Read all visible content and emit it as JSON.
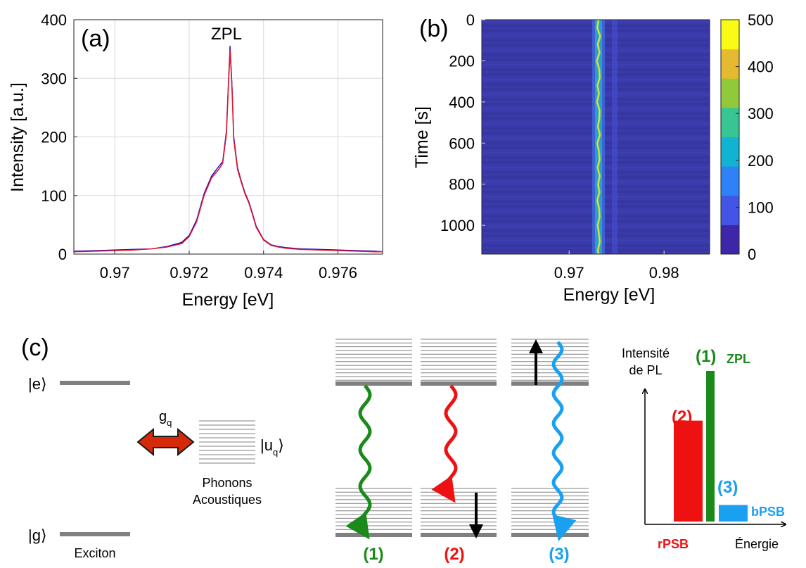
{
  "chart_data": [
    {
      "panel": "(a)",
      "type": "line",
      "annotation": "ZPL",
      "xlabel": "Energy [eV]",
      "ylabel": "Intensity [a.u.]",
      "xlim": [
        0.9689,
        0.9772
      ],
      "ylim": [
        0,
        400
      ],
      "grid": true,
      "x_ticks": [
        0.97,
        0.972,
        0.974,
        0.976
      ],
      "x_tick_labels": [
        "0.97",
        "0.972",
        "0.974",
        "0.976"
      ],
      "y_ticks": [
        0,
        100,
        200,
        300,
        400
      ],
      "y_tick_labels": [
        "0",
        "100",
        "200",
        "300",
        "400"
      ],
      "colors": {
        "measured": "#0000cc",
        "fit": "#e0142c"
      },
      "series": [
        {
          "values_x": [
            0.9689,
            0.9695,
            0.97,
            0.9705,
            0.971,
            0.9714,
            0.9718,
            0.972,
            0.9722,
            0.9724,
            0.9726,
            0.9728,
            0.9729,
            0.973,
            0.97305,
            0.9731,
            0.97315,
            0.9732,
            0.9733,
            0.9734,
            0.9735,
            0.9736,
            0.9737,
            0.9738,
            0.974,
            0.9742,
            0.9744,
            0.9746,
            0.975,
            0.9755,
            0.976,
            0.9765,
            0.977,
            0.9772
          ],
          "values_y": [
            5,
            6,
            7,
            8,
            9,
            13,
            20,
            32,
            58,
            103,
            133,
            150,
            158,
            210,
            285,
            355,
            290,
            200,
            148,
            125,
            105,
            90,
            70,
            48,
            25,
            16,
            13,
            11,
            9,
            8,
            7,
            6,
            5,
            4
          ]
        },
        {
          "values_x": [
            0.9689,
            0.9695,
            0.97,
            0.9705,
            0.971,
            0.9714,
            0.9718,
            0.972,
            0.9722,
            0.9724,
            0.9726,
            0.9728,
            0.9729,
            0.973,
            0.97305,
            0.9731,
            0.97315,
            0.9732,
            0.9733,
            0.9734,
            0.9735,
            0.9736,
            0.9737,
            0.9738,
            0.974,
            0.9742,
            0.9744,
            0.9746,
            0.975,
            0.9755,
            0.976,
            0.9765,
            0.977,
            0.9772
          ],
          "values_y": [
            4,
            5,
            6,
            7,
            9,
            12,
            18,
            30,
            55,
            100,
            130,
            145,
            155,
            205,
            280,
            348,
            285,
            195,
            145,
            123,
            103,
            88,
            68,
            46,
            24,
            15,
            12,
            10,
            8,
            7,
            6,
            5,
            4,
            4
          ]
        }
      ]
    },
    {
      "panel": "(b)",
      "type": "heatmap",
      "xlabel": "Energy [eV]",
      "ylabel": "Time [s]",
      "xlim": [
        0.9608,
        0.9848
      ],
      "ylim": [
        0,
        1140
      ],
      "y_reversed": true,
      "x_ticks": [
        0.97,
        0.98
      ],
      "x_tick_labels": [
        "0.97",
        "0.98"
      ],
      "y_ticks": [
        0,
        200,
        400,
        600,
        800,
        1000
      ],
      "y_tick_labels": [
        "0",
        "200",
        "400",
        "600",
        "800",
        "1000"
      ],
      "colorbar": {
        "min": 0,
        "max": 500,
        "ticks": [
          0,
          100,
          200,
          300,
          400,
          500
        ],
        "tick_labels": [
          "0",
          "100",
          "200",
          "300",
          "400",
          "500"
        ],
        "colors": [
          "#3e26a8",
          "#4355e6",
          "#2d82f7",
          "#12b2d3",
          "#36c593",
          "#90ca3a",
          "#e6ba30",
          "#f9fb15"
        ]
      },
      "peak_line": {
        "energy": 0.9731,
        "peak_intensity": 420,
        "time_points": [
          0,
          40,
          80,
          120,
          160,
          200,
          240,
          280,
          320,
          360,
          400,
          440,
          480,
          520,
          560,
          600,
          640,
          680,
          720,
          760,
          800,
          840,
          880,
          920,
          960,
          1000,
          1040,
          1080,
          1120,
          1140
        ]
      },
      "faint_line_energy": 0.9748
    }
  ],
  "panel_c": {
    "label": "(c)",
    "level_e": "|e⟩",
    "level_g": "|g⟩",
    "coupling": "g",
    "coupling_sub": "q",
    "phonon_state": "|u",
    "phonon_state_sub": "q",
    "phonon_state_close": "⟩",
    "phonons_line1": "Phonons",
    "phonons_line2": "Acoustiques",
    "exciton": "Exciton",
    "process_labels": [
      "(1)",
      "(2)",
      "(3)"
    ],
    "colors": {
      "zpl": "#1a8a1a",
      "rpsb": "#ee1111",
      "bpsb": "#1aa0f0",
      "arrow_double": "#d42a0a",
      "level": "#808080"
    },
    "spectrum": {
      "ylabel_line1": "Intensité",
      "ylabel_line2": "de PL",
      "xlabel": "Énergie",
      "bar_zpl_label": "(1)",
      "bar_zpl_name": "ZPL",
      "bar_rpsb_label": "(2)",
      "bar_rpsb_name": "rPSB",
      "bar_bpsb_label": "(3)",
      "bar_bpsb_name": "bPSB",
      "bar_heights": {
        "rpsb": 0.67,
        "zpl": 1.0,
        "bpsb": 0.11
      }
    }
  }
}
